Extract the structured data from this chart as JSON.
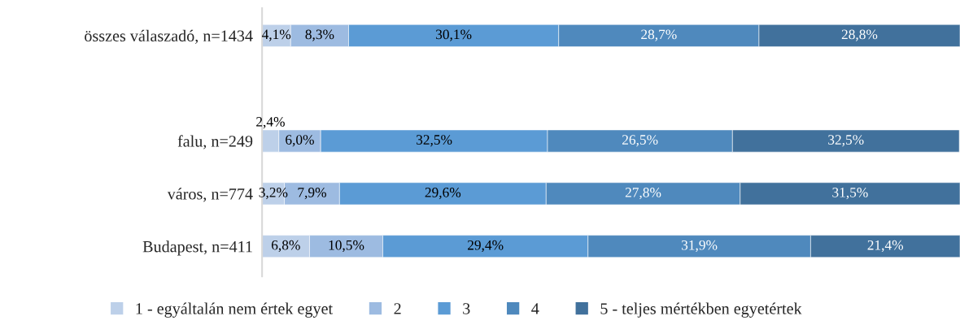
{
  "chart_data": {
    "type": "bar",
    "orientation": "horizontal",
    "stacked": true,
    "categories": [
      "összes válaszadó, n=1434",
      null,
      "falu, n=249",
      "város, n=774",
      "Budapest, n=411"
    ],
    "xlim": [
      0,
      100
    ],
    "tick_labels": "y",
    "grid": false,
    "legend": "bottom",
    "series": [
      {
        "name": "1 - egyáltalán nem értek egyet",
        "color": "#bdd0e9",
        "values": [
          4.1,
          null,
          2.4,
          3.2,
          6.8
        ],
        "value_labels": [
          "4,1%",
          null,
          "2,4%",
          "3,2%",
          "6,8%"
        ]
      },
      {
        "name": "2",
        "color": "#9dbbe1",
        "values": [
          8.3,
          null,
          6.0,
          7.9,
          10.5
        ],
        "value_labels": [
          "8,3%",
          null,
          "6,0%",
          "7,9%",
          "10,5%"
        ]
      },
      {
        "name": "3",
        "color": "#5b9bd5",
        "values": [
          30.1,
          null,
          32.5,
          29.6,
          29.4
        ],
        "value_labels": [
          "30,1%",
          null,
          "32,5%",
          "29,6%",
          "29,4%"
        ]
      },
      {
        "name": "4",
        "color": "#4f89bd",
        "values": [
          28.7,
          null,
          26.5,
          27.8,
          31.9
        ],
        "value_labels": [
          "28,7%",
          null,
          "26,5%",
          "27,8%",
          "31,9%"
        ]
      },
      {
        "name": "5 - teljes mértékben egyetértek",
        "color": "#41719c",
        "values": [
          28.8,
          null,
          32.5,
          31.5,
          21.4
        ],
        "value_labels": [
          "28,8%",
          null,
          "32,5%",
          "31,5%",
          "21,4%"
        ]
      }
    ]
  }
}
